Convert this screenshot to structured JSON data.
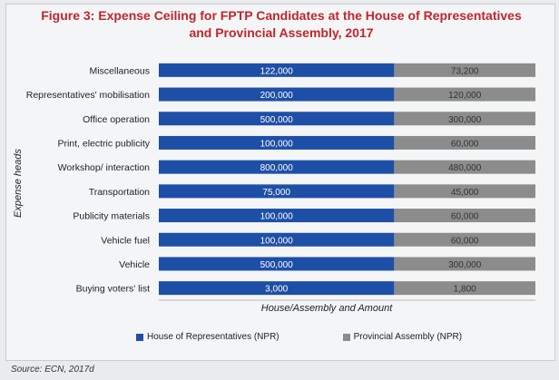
{
  "chart_data": {
    "type": "bar",
    "orientation": "horizontal",
    "stacked": true,
    "title": "Figure 3: Expense Ceiling for FPTP Candidates at the House of Representatives and Provincial Assembly, 2017",
    "xlabel": "House/Assembly and Amount",
    "ylabel": "Expense heads",
    "categories": [
      "Miscellaneous",
      "Representatives' mobilisation",
      "Office operation",
      "Print, electric publicity",
      "Workshop/ interaction",
      "Transportation",
      "Publicity materials",
      "Vehicle fuel",
      "Vehicle",
      "Buying voters' list"
    ],
    "series": [
      {
        "name": "House of Representatives (NPR)",
        "color": "#1e4fa7",
        "values": [
          122000,
          200000,
          500000,
          100000,
          800000,
          75000,
          100000,
          100000,
          500000,
          3000
        ],
        "labels": [
          "122,000",
          "200,000",
          "500,000",
          "100,000",
          "800,000",
          "75,000",
          "100,000",
          "100,000",
          "500,000",
          "3,000"
        ]
      },
      {
        "name": "Provincial Assembly (NPR)",
        "color": "#8c8c8c",
        "values": [
          73200,
          120000,
          300000,
          60000,
          480000,
          45000,
          60000,
          60000,
          300000,
          1800
        ],
        "labels": [
          "73,200",
          "120,000",
          "300,000",
          "60,000",
          "480,000",
          "45,000",
          "60,000",
          "60,000",
          "300,000",
          "1,800"
        ]
      }
    ],
    "value_scale": "percent-of-total (100% stacked)",
    "grid": false,
    "legend_position": "bottom"
  },
  "source": "Source: ECN, 2017d"
}
